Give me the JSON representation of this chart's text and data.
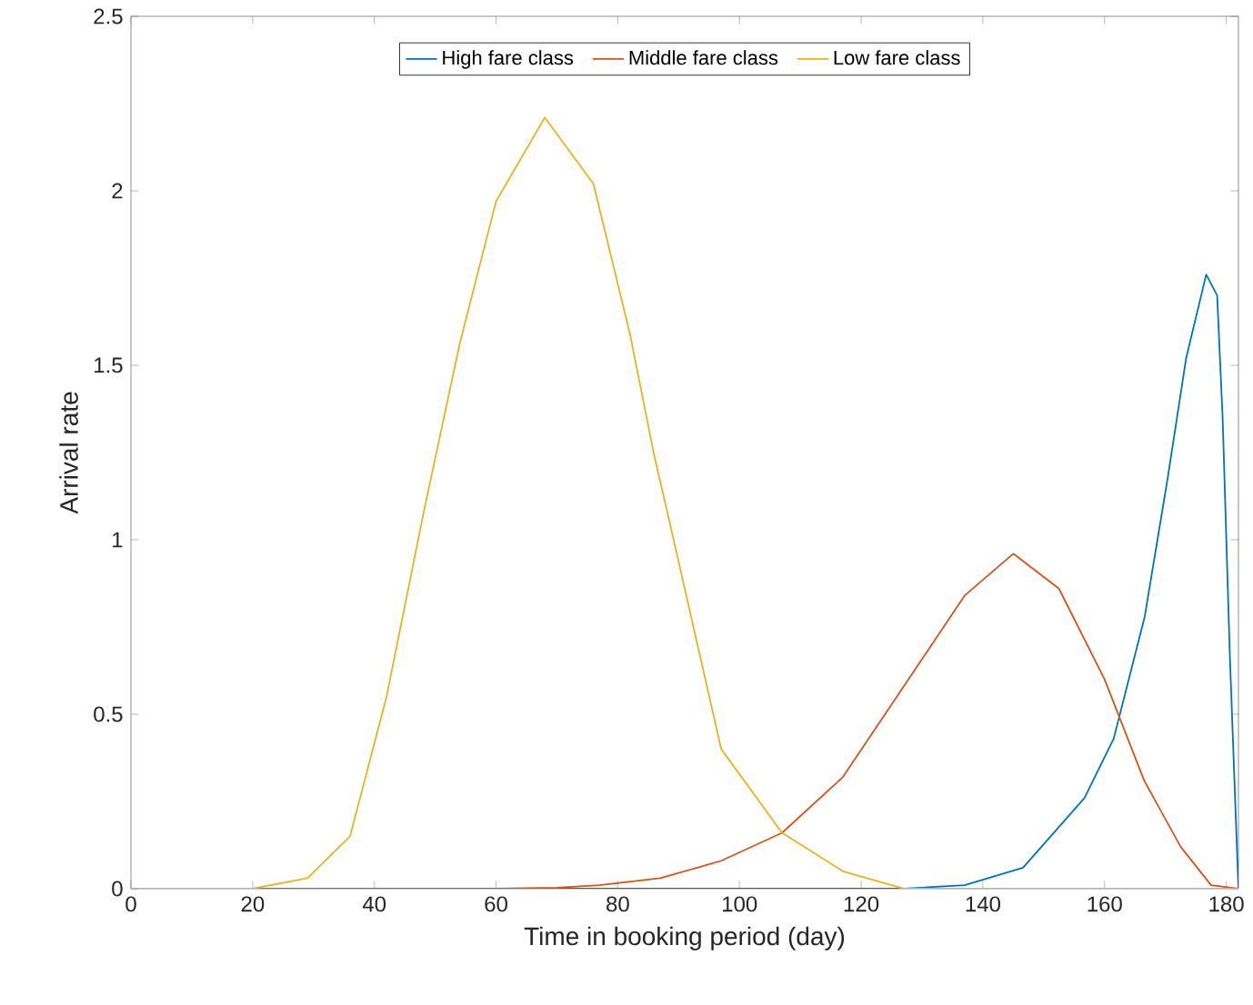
{
  "chart_data": {
    "type": "line",
    "xlabel": "Time in booking period (day)",
    "ylabel": "Arrival rate",
    "xlim": [
      0,
      182
    ],
    "ylim": [
      0,
      2.5
    ],
    "xticks": [
      0,
      20,
      40,
      60,
      80,
      100,
      120,
      140,
      160,
      180
    ],
    "yticks": [
      0,
      0.5,
      1,
      1.5,
      2,
      2.5
    ],
    "grid": false,
    "legend": "top",
    "marker": "none",
    "line_style": "solid",
    "series": [
      {
        "name": "High fare class",
        "color": "#0072bd",
        "x": [
          0,
          60,
          100,
          127,
          137,
          146.6,
          156.7,
          161.5,
          166.6,
          170.4,
          173.4,
          176.7,
          178.5,
          179.4,
          180.6,
          182
        ],
        "values": [
          0,
          0,
          0,
          0,
          0.01,
          0.06,
          0.26,
          0.43,
          0.78,
          1.18,
          1.52,
          1.76,
          1.7,
          1.35,
          0.66,
          0
        ]
      },
      {
        "name": "Middle fare class",
        "color": "#d95319",
        "x": [
          0,
          60,
          70,
          77,
          87,
          97,
          107,
          117,
          127,
          137,
          145,
          152.5,
          160,
          166.5,
          172.5,
          177.5,
          182
        ],
        "values": [
          0,
          0,
          0.003,
          0.01,
          0.03,
          0.08,
          0.16,
          0.32,
          0.58,
          0.84,
          0.96,
          0.86,
          0.6,
          0.31,
          0.12,
          0.01,
          0
        ]
      },
      {
        "name": "Low fare class",
        "color": "#edb120",
        "x": [
          0,
          20,
          29,
          36,
          42,
          48,
          54,
          60,
          68,
          76,
          82,
          86,
          88,
          97,
          107,
          117,
          127,
          182
        ],
        "values": [
          0,
          0,
          0.03,
          0.15,
          0.55,
          1.07,
          1.56,
          1.97,
          2.21,
          2.02,
          1.59,
          1.24,
          1.09,
          0.4,
          0.16,
          0.05,
          0,
          0
        ]
      }
    ]
  }
}
